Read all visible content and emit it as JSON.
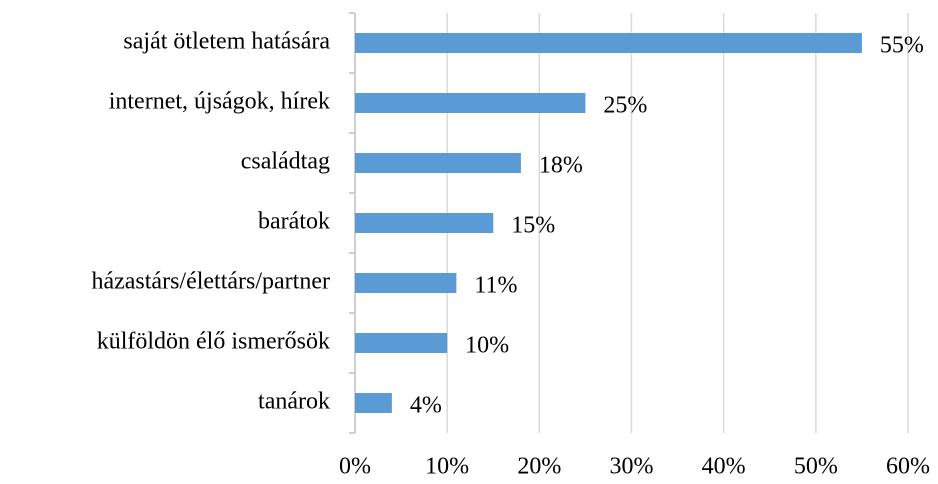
{
  "chart_data": {
    "type": "bar",
    "orientation": "horizontal",
    "categories": [
      "saját ötletem hatására",
      "internet, újságok, hírek",
      "családtag",
      "barátok",
      "házastárs/élettárs/partner",
      "külföldön élő ismerősök",
      "tanárok"
    ],
    "values": [
      55,
      25,
      18,
      15,
      11,
      10,
      4
    ],
    "value_labels": [
      "55%",
      "25%",
      "18%",
      "15%",
      "11%",
      "10%",
      "4%"
    ],
    "color": "#5b9bd5",
    "xlim": [
      0,
      60
    ],
    "xticks": [
      {
        "value": 0,
        "label": "0%"
      },
      {
        "value": 10,
        "label": "10%"
      },
      {
        "value": 20,
        "label": "20%"
      },
      {
        "value": 30,
        "label": "30%"
      },
      {
        "value": 40,
        "label": "40%"
      },
      {
        "value": 50,
        "label": "50%"
      },
      {
        "value": 60,
        "label": "60%"
      }
    ],
    "grid": true
  }
}
